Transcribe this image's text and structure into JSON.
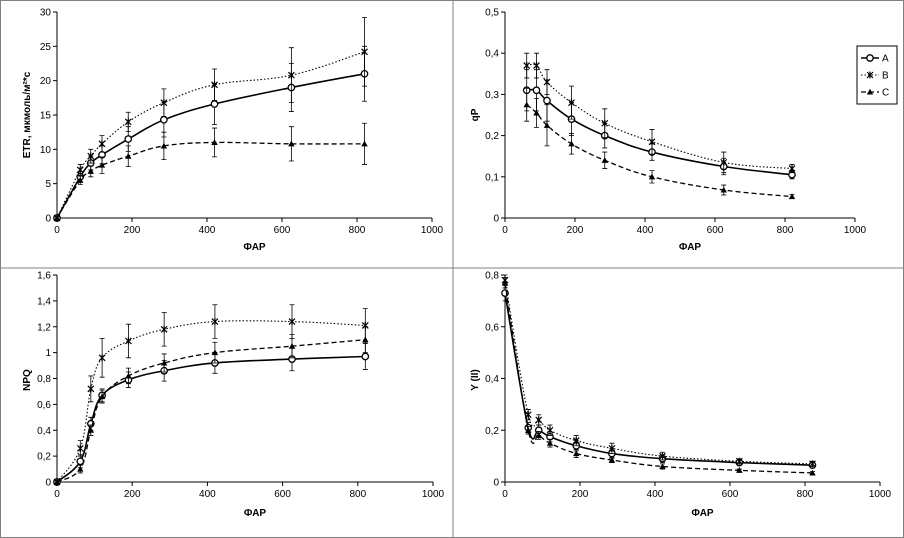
{
  "chart_data": [
    {
      "id": "etr",
      "type": "line",
      "xlabel": "ФАР",
      "ylabel": "ETR, мкмоль/м²*с",
      "xlim": [
        0,
        1000
      ],
      "ylim": [
        0,
        30
      ],
      "xticks": [
        "0",
        "200",
        "400",
        "600",
        "800",
        "1000"
      ],
      "yticks": [
        "0",
        "5",
        "10",
        "15",
        "20",
        "25",
        "30"
      ],
      "grid": false,
      "series": [
        {
          "name": "A",
          "marker": "circle",
          "line": "solid",
          "x": [
            0,
            62,
            90,
            120,
            190,
            285,
            420,
            625,
            820
          ],
          "y": [
            0,
            6.0,
            8.0,
            9.2,
            11.5,
            14.3,
            16.6,
            19.0,
            21.0
          ],
          "err": [
            0,
            0.8,
            1.0,
            1.3,
            1.8,
            2.5,
            3.0,
            3.5,
            4.0
          ]
        },
        {
          "name": "B",
          "marker": "x",
          "line": "dotted",
          "x": [
            0,
            62,
            90,
            120,
            190,
            285,
            420,
            625,
            820
          ],
          "y": [
            0,
            7.0,
            9.0,
            10.8,
            14.0,
            16.8,
            19.4,
            20.8,
            24.2
          ],
          "err": [
            0,
            0.8,
            1.0,
            1.2,
            1.4,
            2.0,
            2.3,
            4.0,
            5.0
          ]
        },
        {
          "name": "C",
          "marker": "triangle",
          "line": "dashed",
          "x": [
            0,
            62,
            90,
            120,
            190,
            285,
            420,
            625,
            820
          ],
          "y": [
            0,
            5.5,
            6.8,
            7.7,
            9.0,
            10.5,
            11.0,
            10.8,
            10.8
          ],
          "err": [
            0,
            0.6,
            0.8,
            1.2,
            1.5,
            2.0,
            2.1,
            2.5,
            3.0
          ]
        }
      ]
    },
    {
      "id": "qp",
      "type": "line",
      "xlabel": "ФАР",
      "ylabel": "qP",
      "xlim": [
        0,
        1000
      ],
      "ylim": [
        0,
        0.5
      ],
      "xticks": [
        "0",
        "200",
        "400",
        "600",
        "800",
        "1000"
      ],
      "yticks": [
        "0",
        "0,1",
        "0,2",
        "0,3",
        "0,4",
        "0,5"
      ],
      "grid": false,
      "legend": {
        "entries": [
          "A",
          "B",
          "C"
        ],
        "placement": "top-right"
      },
      "series": [
        {
          "name": "A",
          "marker": "circle",
          "line": "solid",
          "x": [
            62,
            90,
            120,
            190,
            285,
            420,
            625,
            820
          ],
          "y": [
            0.31,
            0.31,
            0.285,
            0.24,
            0.2,
            0.16,
            0.125,
            0.105
          ],
          "err": [
            0.05,
            0.05,
            0.05,
            0.04,
            0.03,
            0.02,
            0.02,
            0.01
          ]
        },
        {
          "name": "B",
          "marker": "x",
          "line": "dotted",
          "x": [
            62,
            90,
            120,
            190,
            285,
            420,
            625,
            820
          ],
          "y": [
            0.37,
            0.37,
            0.33,
            0.28,
            0.23,
            0.185,
            0.135,
            0.12
          ],
          "err": [
            0.03,
            0.03,
            0.03,
            0.04,
            0.035,
            0.03,
            0.025,
            0.01
          ]
        },
        {
          "name": "C",
          "marker": "triangle",
          "line": "dashed",
          "x": [
            62,
            90,
            120,
            190,
            285,
            420,
            625,
            820
          ],
          "y": [
            0.275,
            0.255,
            0.225,
            0.18,
            0.14,
            0.1,
            0.068,
            0.052
          ],
          "err": [
            0.04,
            0.035,
            0.05,
            0.025,
            0.02,
            0.015,
            0.012,
            0.005
          ]
        }
      ]
    },
    {
      "id": "npq",
      "type": "line",
      "xlabel": "ФАР",
      "ylabel": "NPQ",
      "xlim": [
        0,
        1000
      ],
      "ylim": [
        0,
        1.6
      ],
      "xticks": [
        "0",
        "200",
        "400",
        "600",
        "800",
        "1000"
      ],
      "yticks": [
        "0",
        "0,2",
        "0,4",
        "0,6",
        "0,8",
        "1",
        "1,2",
        "1,4",
        "1,6"
      ],
      "grid": false,
      "series": [
        {
          "name": "A",
          "marker": "circle",
          "line": "solid",
          "x": [
            0,
            62,
            90,
            120,
            190,
            285,
            420,
            625,
            820
          ],
          "y": [
            0,
            0.16,
            0.45,
            0.67,
            0.79,
            0.86,
            0.92,
            0.95,
            0.97
          ],
          "err": [
            0,
            0.05,
            0.05,
            0.05,
            0.06,
            0.08,
            0.08,
            0.09,
            0.1
          ]
        },
        {
          "name": "B",
          "marker": "x",
          "line": "dotted",
          "x": [
            0,
            62,
            90,
            120,
            190,
            285,
            420,
            625,
            820
          ],
          "y": [
            0,
            0.26,
            0.72,
            0.96,
            1.09,
            1.18,
            1.24,
            1.24,
            1.21
          ],
          "err": [
            0,
            0.06,
            0.1,
            0.15,
            0.13,
            0.13,
            0.13,
            0.13,
            0.13
          ]
        },
        {
          "name": "C",
          "marker": "triangle",
          "line": "dashed",
          "x": [
            0,
            62,
            90,
            120,
            190,
            285,
            420,
            625,
            820
          ],
          "y": [
            0,
            0.1,
            0.4,
            0.66,
            0.82,
            0.92,
            1.0,
            1.05,
            1.1
          ],
          "err": [
            0,
            0.03,
            0.04,
            0.05,
            0.06,
            0.07,
            0.08,
            0.09,
            0.1
          ]
        }
      ]
    },
    {
      "id": "yii",
      "type": "line",
      "xlabel": "ФАР",
      "ylabel": "Y (II)",
      "xlim": [
        0,
        1000
      ],
      "ylim": [
        0,
        0.8
      ],
      "xticks": [
        "0",
        "200",
        "400",
        "600",
        "800",
        "1000"
      ],
      "yticks": [
        "0",
        "0,2",
        "0,4",
        "0,6",
        "0,8"
      ],
      "grid": false,
      "series": [
        {
          "name": "A",
          "marker": "circle",
          "line": "solid",
          "x": [
            0,
            62,
            90,
            120,
            190,
            285,
            420,
            625,
            820
          ],
          "y": [
            0.73,
            0.21,
            0.2,
            0.175,
            0.14,
            0.11,
            0.09,
            0.075,
            0.065
          ],
          "err": [
            0.03,
            0.02,
            0.02,
            0.02,
            0.02,
            0.02,
            0.015,
            0.01,
            0.01
          ]
        },
        {
          "name": "B",
          "marker": "x",
          "line": "dotted",
          "x": [
            0,
            62,
            90,
            120,
            190,
            285,
            420,
            625,
            820
          ],
          "y": [
            0.78,
            0.26,
            0.24,
            0.2,
            0.16,
            0.13,
            0.1,
            0.08,
            0.07
          ],
          "err": [
            0.02,
            0.02,
            0.02,
            0.02,
            0.02,
            0.02,
            0.015,
            0.01,
            0.01
          ]
        },
        {
          "name": "C",
          "marker": "triangle",
          "line": "dashed",
          "x": [
            0,
            62,
            90,
            120,
            190,
            285,
            420,
            625,
            820
          ],
          "y": [
            0.77,
            0.2,
            0.18,
            0.15,
            0.11,
            0.085,
            0.06,
            0.045,
            0.035
          ],
          "err": [
            0.02,
            0.015,
            0.015,
            0.015,
            0.015,
            0.01,
            0.01,
            0.005,
            0.005
          ]
        }
      ]
    }
  ]
}
